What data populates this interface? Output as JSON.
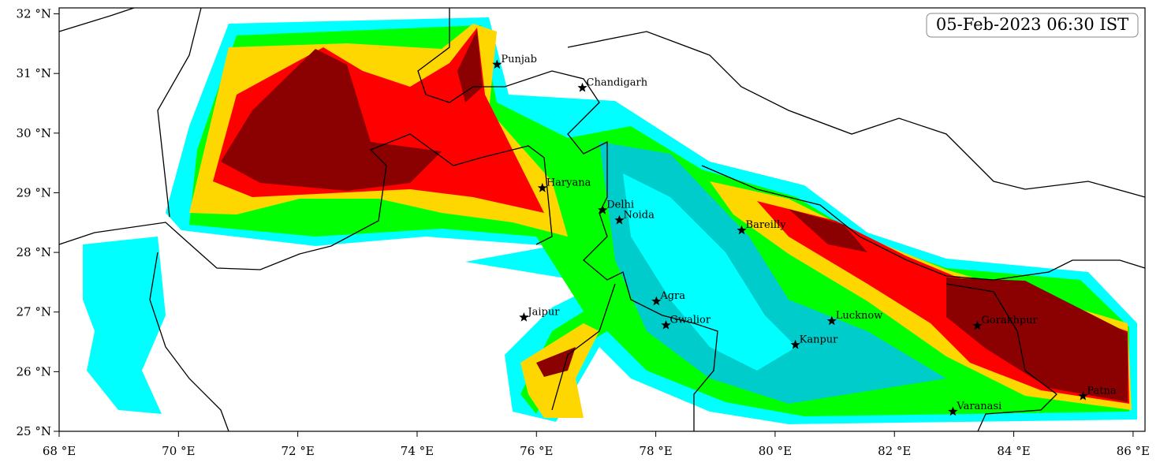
{
  "map": {
    "title": "05-Feb-2023 06:30 IST",
    "xlim": [
      68,
      86.2
    ],
    "ylim": [
      25,
      32.1
    ],
    "xticks": [
      {
        "value": 68,
        "label": "68 °E"
      },
      {
        "value": 70,
        "label": "70 °E"
      },
      {
        "value": 72,
        "label": "72 °E"
      },
      {
        "value": 74,
        "label": "74 °E"
      },
      {
        "value": 76,
        "label": "76 °E"
      },
      {
        "value": 78,
        "label": "78 °E"
      },
      {
        "value": 80,
        "label": "80 °E"
      },
      {
        "value": 82,
        "label": "82 °E"
      },
      {
        "value": 84,
        "label": "84 °E"
      },
      {
        "value": 86,
        "label": "86 °E"
      }
    ],
    "yticks": [
      {
        "value": 25,
        "label": "25 °N"
      },
      {
        "value": 26,
        "label": "26 °N"
      },
      {
        "value": 27,
        "label": "27 °N"
      },
      {
        "value": 28,
        "label": "28 °N"
      },
      {
        "value": 29,
        "label": "29 °N"
      },
      {
        "value": 30,
        "label": "30 °N"
      },
      {
        "value": 31,
        "label": "31 °N"
      },
      {
        "value": 32,
        "label": "32 °N"
      }
    ],
    "cities": [
      {
        "name": "Punjab",
        "lon": 75.34,
        "lat": 31.15
      },
      {
        "name": "Chandigarh",
        "lon": 76.77,
        "lat": 30.76
      },
      {
        "name": "Haryana",
        "lon": 76.1,
        "lat": 29.08
      },
      {
        "name": "Delhi",
        "lon": 77.11,
        "lat": 28.71
      },
      {
        "name": "Noida",
        "lon": 77.39,
        "lat": 28.54
      },
      {
        "name": "Bareilly",
        "lon": 79.44,
        "lat": 28.37
      },
      {
        "name": "Agra",
        "lon": 78.01,
        "lat": 27.18
      },
      {
        "name": "Jaipur",
        "lon": 75.79,
        "lat": 26.91
      },
      {
        "name": "Gwalior",
        "lon": 78.17,
        "lat": 26.78
      },
      {
        "name": "Lucknow",
        "lon": 80.95,
        "lat": 26.85
      },
      {
        "name": "Kanpur",
        "lon": 80.34,
        "lat": 26.45
      },
      {
        "name": "Gorakhpur",
        "lon": 83.39,
        "lat": 26.77
      },
      {
        "name": "Varanasi",
        "lon": 82.98,
        "lat": 25.33
      },
      {
        "name": "Patna",
        "lon": 85.16,
        "lat": 25.59
      }
    ]
  }
}
